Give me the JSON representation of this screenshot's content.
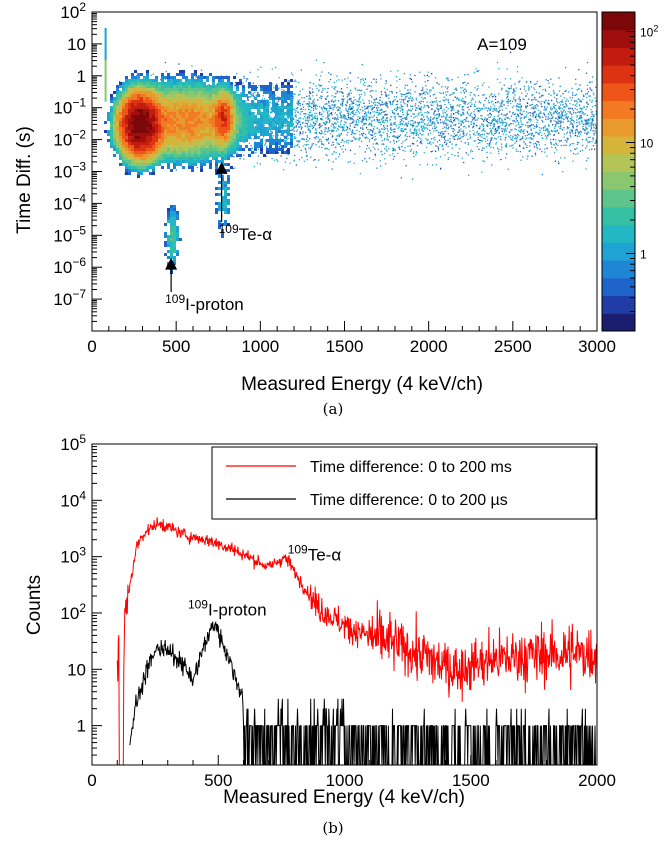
{
  "chart_data": [
    {
      "type": "heatmap",
      "panel_caption": "(a)",
      "title": "",
      "annotation_main": "A=109",
      "xlabel": "Measured Energy (4 keV/ch)",
      "ylabel": "Time Diff. (s)",
      "xlim": [
        0,
        3000
      ],
      "ylim_log10": [
        -8,
        2
      ],
      "y_log_scale": true,
      "x_ticks": [
        "0",
        "500",
        "1000",
        "1500",
        "2000",
        "2500",
        "3000"
      ],
      "y_ticks": [
        {
          "base": "10",
          "exp": "2",
          "text": ""
        },
        {
          "base": "",
          "exp": "",
          "text": "10"
        },
        {
          "base": "",
          "exp": "",
          "text": "1"
        },
        {
          "base": "10",
          "exp": "−1",
          "text": ""
        },
        {
          "base": "10",
          "exp": "−2",
          "text": ""
        },
        {
          "base": "10",
          "exp": "−3",
          "text": ""
        },
        {
          "base": "10",
          "exp": "−4",
          "text": ""
        },
        {
          "base": "10",
          "exp": "−5",
          "text": ""
        },
        {
          "base": "10",
          "exp": "−6",
          "text": ""
        },
        {
          "base": "10",
          "exp": "−7",
          "text": ""
        }
      ],
      "colorbar": {
        "scale": "log",
        "range": [
          0.2,
          150
        ],
        "ticks": [
          {
            "base": "10",
            "exp": "2",
            "text": ""
          },
          {
            "base": "",
            "exp": "",
            "text": "10"
          },
          {
            "base": "",
            "exp": "",
            "text": "1"
          }
        ],
        "colors": [
          "#1b1d6e",
          "#1f3da5",
          "#1d63c9",
          "#1f86d6",
          "#1ea3d4",
          "#22b7c2",
          "#35c0a4",
          "#5ec58a",
          "#8ac76f",
          "#b4c557",
          "#d5b43c",
          "#e99a2e",
          "#f27a22",
          "#ee5518",
          "#dc3313",
          "#c21c11",
          "#a10e0e",
          "#7c0709"
        ]
      },
      "features": [
        {
          "label_exp": "109",
          "label": "Te-α",
          "x": 770,
          "log10_y": -2.7
        },
        {
          "label_exp": "109",
          "label": "I-proton",
          "x": 470,
          "log10_y": -5.7
        }
      ],
      "color_scale_levels": {
        "hot_center": {
          "x": 280,
          "log10_y": -1.5,
          "counts": 150
        },
        "hot_secondary": {
          "x": 770,
          "log10_y": -1.3,
          "counts": 40
        }
      }
    },
    {
      "type": "line",
      "panel_caption": "(b)",
      "title": "",
      "xlabel": "Measured Energy (4 keV/ch)",
      "ylabel": "Counts",
      "xlim": [
        0,
        2000
      ],
      "ylim": [
        0.2,
        100000
      ],
      "y_log_scale": true,
      "x_ticks": [
        "0",
        "500",
        "1000",
        "1500",
        "2000"
      ],
      "y_ticks": [
        {
          "base": "10",
          "exp": "5",
          "text": ""
        },
        {
          "base": "10",
          "exp": "4",
          "text": ""
        },
        {
          "base": "10",
          "exp": "3",
          "text": ""
        },
        {
          "base": "10",
          "exp": "2",
          "text": ""
        },
        {
          "base": "",
          "exp": "",
          "text": "10"
        },
        {
          "base": "",
          "exp": "",
          "text": "1"
        }
      ],
      "legend_position": "top-right",
      "series": [
        {
          "name": "Time difference: 0 to 200 ms",
          "color": "#ff0000",
          "x": [
            100,
            110,
            120,
            130,
            150,
            175,
            200,
            225,
            250,
            275,
            300,
            350,
            400,
            450,
            500,
            550,
            600,
            650,
            700,
            740,
            760,
            780,
            800,
            850,
            900,
            1000,
            1100,
            1200,
            1300,
            1400,
            1450,
            1500,
            1600,
            1700,
            1800,
            1900,
            2000
          ],
          "y": [
            40,
            0.2,
            2,
            80,
            300,
            1400,
            2500,
            3000,
            3600,
            3800,
            3400,
            2600,
            2200,
            2000,
            1700,
            1400,
            1100,
            850,
            650,
            850,
            950,
            800,
            550,
            250,
            120,
            60,
            38,
            28,
            18,
            11,
            10,
            12,
            15,
            17,
            18,
            19,
            19
          ]
        },
        {
          "name": "Time difference: 0 to 200 µs",
          "color": "#000000",
          "x": [
            150,
            170,
            200,
            225,
            250,
            275,
            300,
            325,
            350,
            375,
            400,
            425,
            450,
            475,
            490,
            500,
            525,
            550,
            575,
            600,
            650,
            700,
            800,
            900,
            1000,
            1200,
            1400,
            1600,
            1800,
            2000
          ],
          "y": [
            0.5,
            2,
            6,
            12,
            20,
            25,
            20,
            17,
            15,
            10,
            6,
            15,
            30,
            55,
            65,
            45,
            25,
            12,
            6,
            3,
            2,
            1.5,
            1,
            0.6,
            0.5,
            0.5,
            0.5,
            0.5,
            0.5,
            0.5
          ]
        }
      ],
      "annotations": [
        {
          "label_exp": "109",
          "label": "Te-α"
        },
        {
          "label_exp": "109",
          "label": "I-proton"
        }
      ]
    }
  ]
}
